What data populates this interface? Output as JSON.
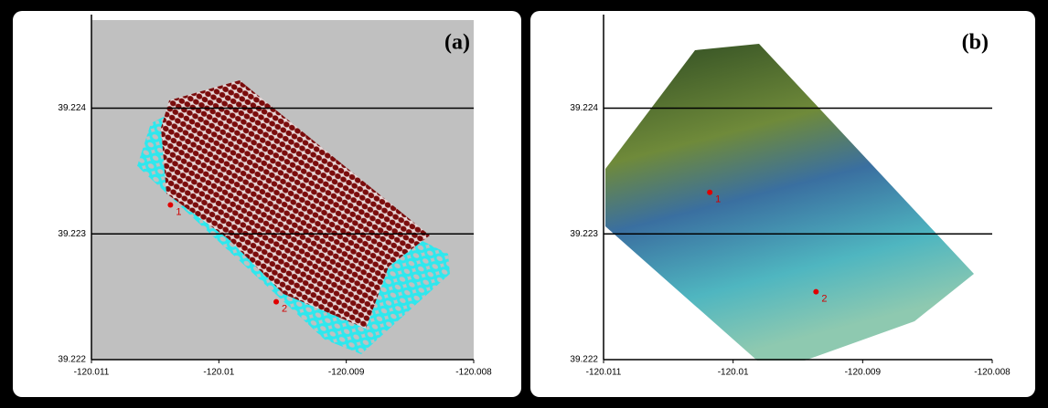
{
  "chart_data": [
    {
      "type": "scatter",
      "panel_label": "(a)",
      "xlim": [
        -120.011,
        -120.008
      ],
      "ylim": [
        39.222,
        39.2247
      ],
      "xticks": [
        -120.011,
        -120.01,
        -120.009,
        -120.008
      ],
      "yticks": [
        39.222,
        39.223,
        39.224
      ],
      "grid": true,
      "annotations": [
        {
          "text": "1",
          "x": -120.01038,
          "y": 39.22323
        },
        {
          "text": "2",
          "x": -120.00955,
          "y": 39.22246
        }
      ]
    },
    {
      "type": "scatter",
      "panel_label": "(b)",
      "xlim": [
        -120.011,
        -120.008
      ],
      "ylim": [
        39.222,
        39.2247
      ],
      "xticks": [
        -120.011,
        -120.01,
        -120.009,
        -120.008
      ],
      "yticks": [
        39.222,
        39.223,
        39.224
      ],
      "grid": true,
      "annotations": [
        {
          "text": "1",
          "x": -120.01018,
          "y": 39.22333
        },
        {
          "text": "2",
          "x": -120.00936,
          "y": 39.22254
        }
      ]
    }
  ]
}
